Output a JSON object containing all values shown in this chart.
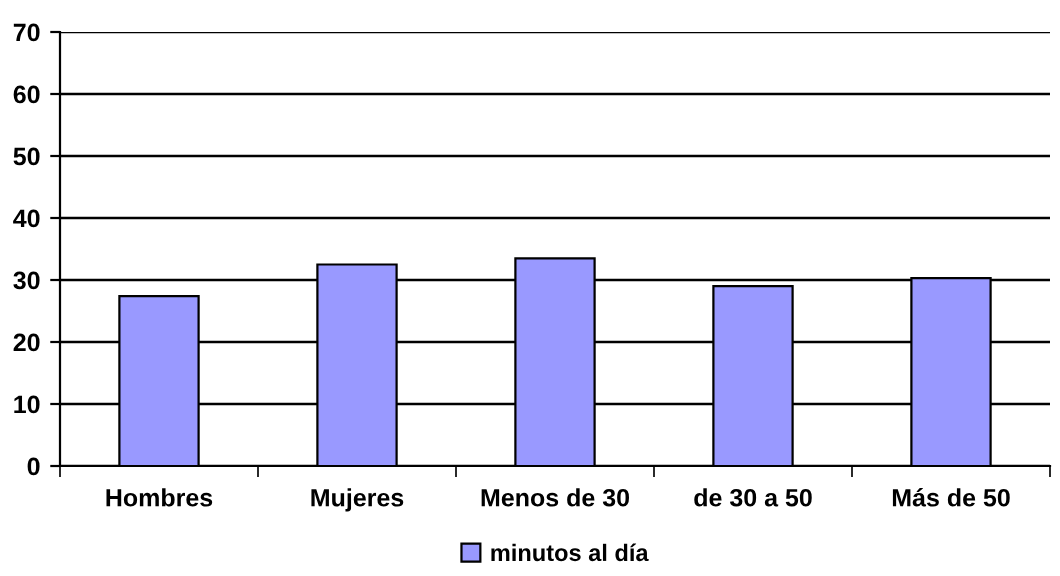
{
  "chart_data": {
    "type": "bar",
    "categories": [
      "Hombres",
      "Mujeres",
      "Menos de 30",
      "de 30 a 50",
      "Más de 50"
    ],
    "series": [
      {
        "name": "minutos al día",
        "color": "#9999ff",
        "values": [
          27.4,
          32.5,
          33.5,
          29.0,
          30.3
        ]
      }
    ],
    "ylim": [
      0,
      70
    ],
    "yticks": [
      0,
      10,
      20,
      30,
      40,
      50,
      60,
      70
    ],
    "grid": "y",
    "legend": "bottom"
  }
}
